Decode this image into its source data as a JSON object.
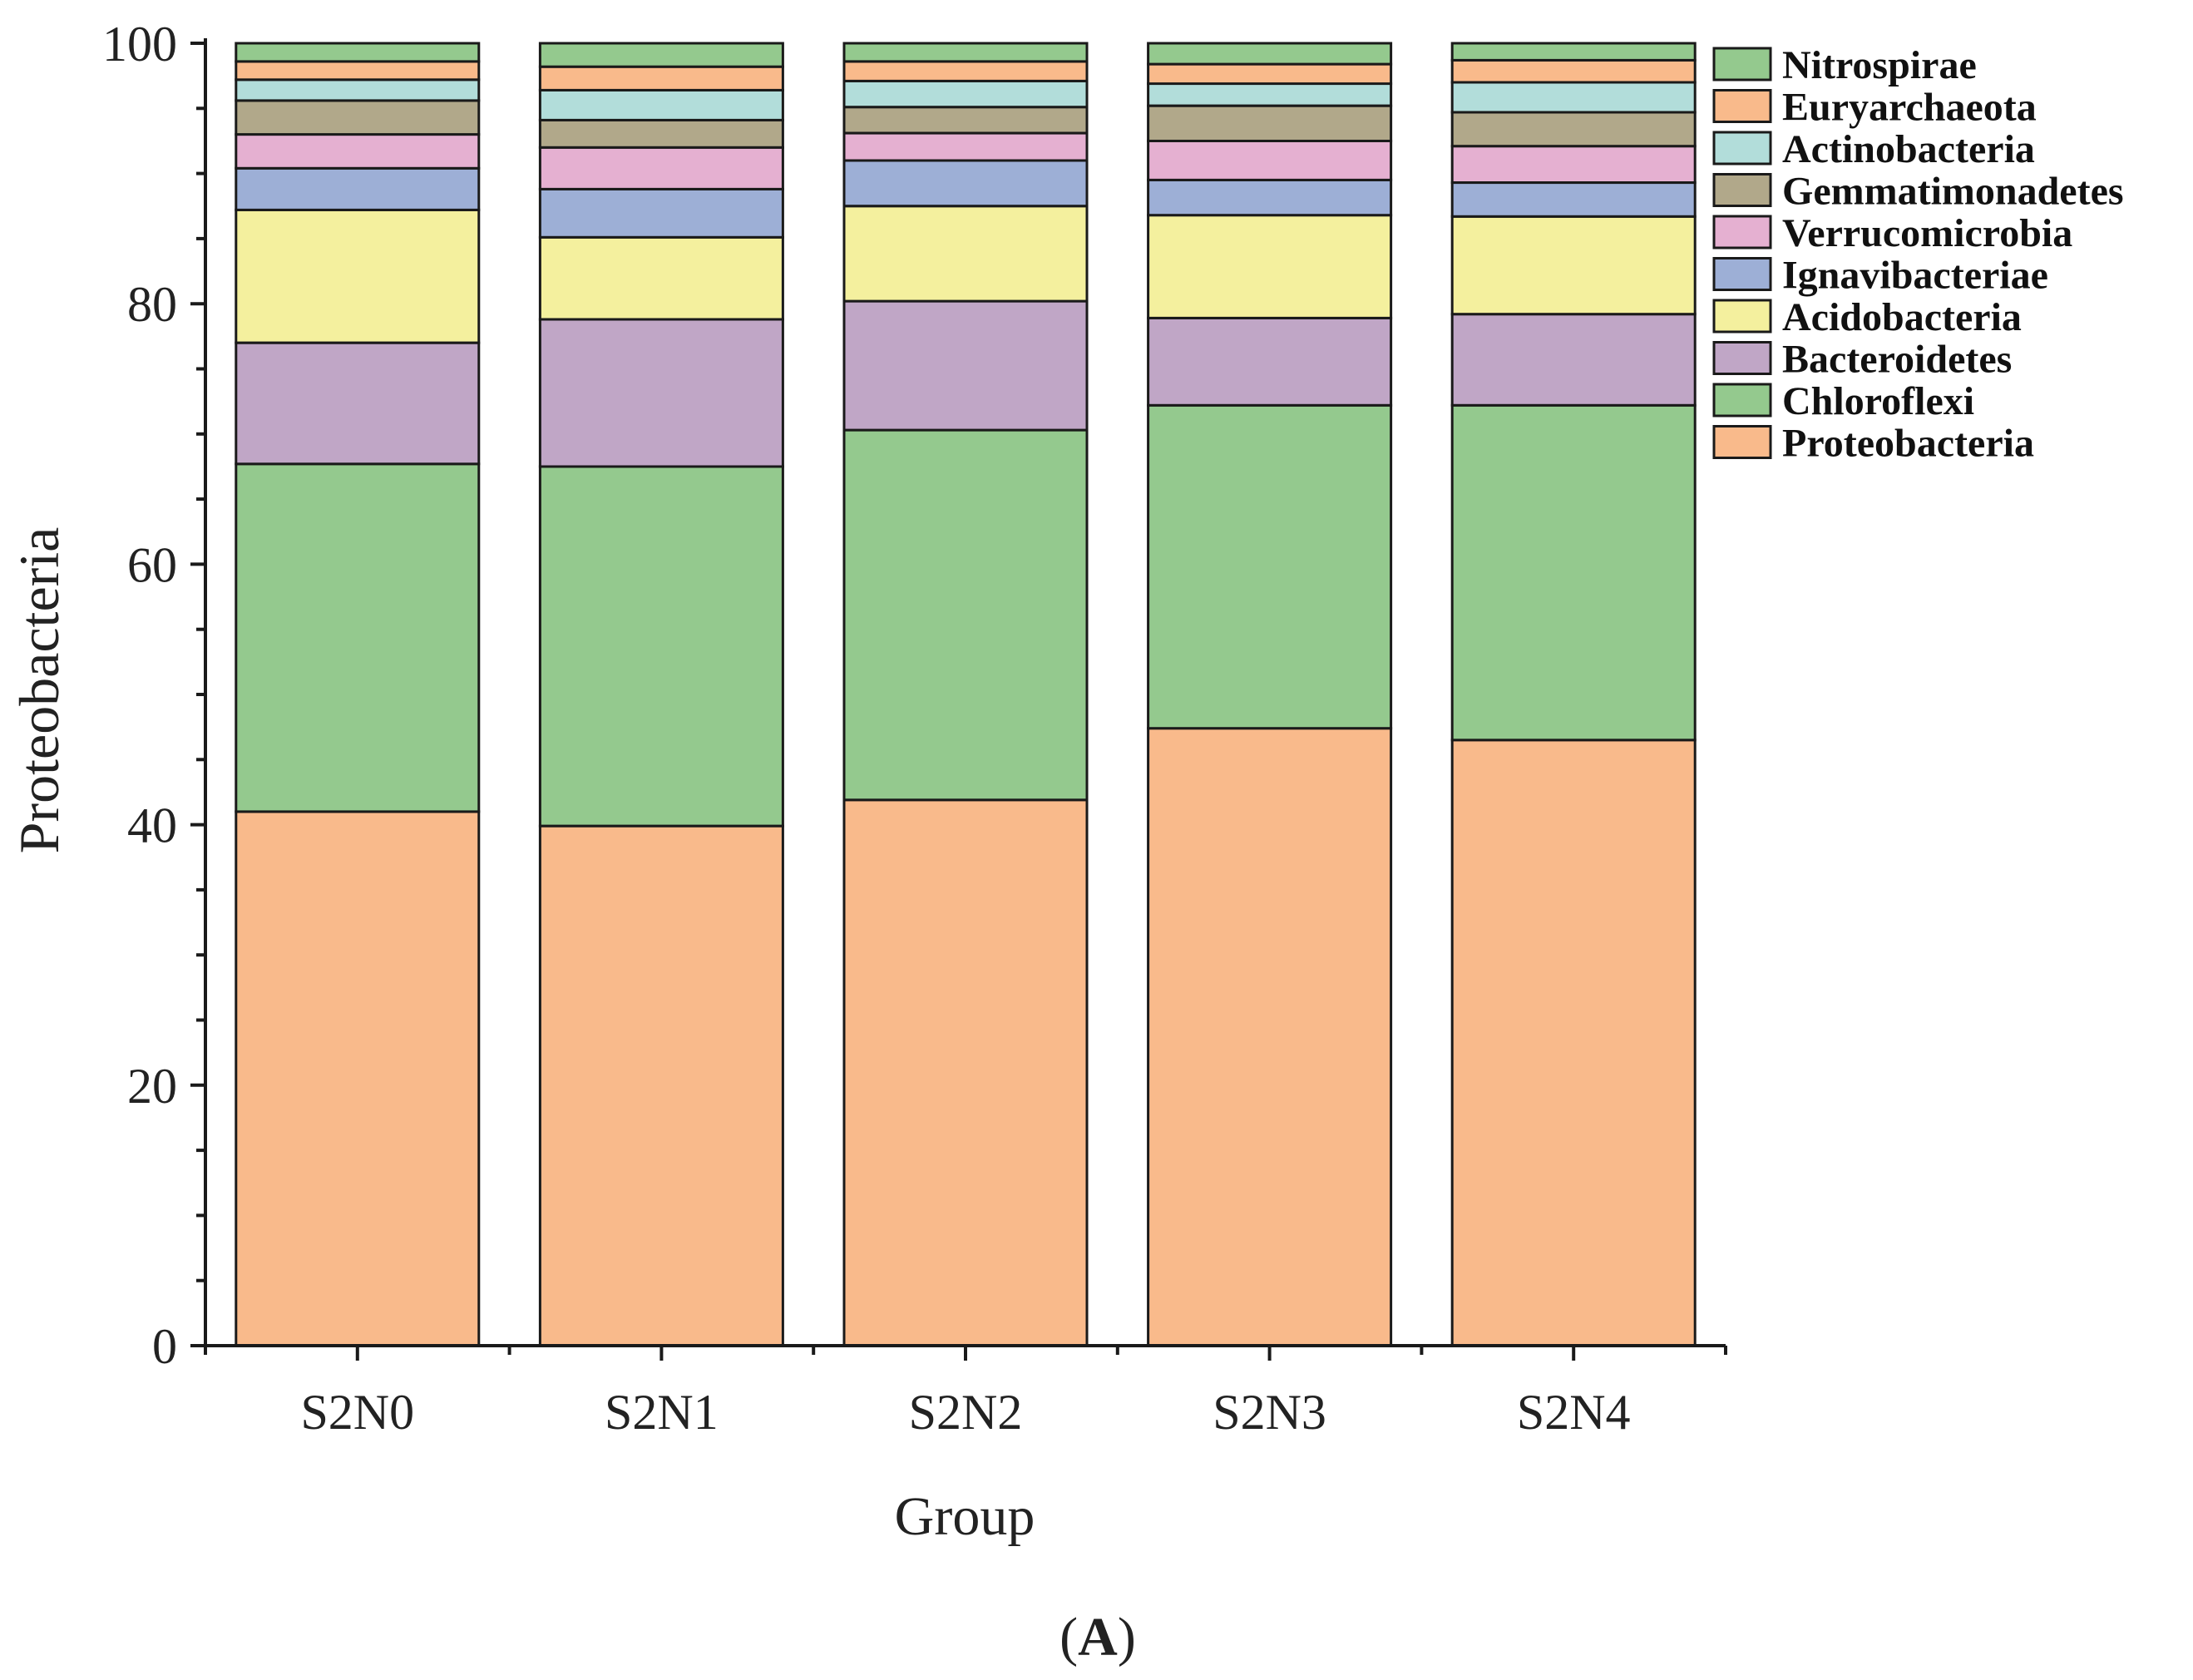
{
  "chart_data": {
    "type": "bar",
    "stacked": true,
    "title": "",
    "xlabel": "Group",
    "ylabel": "Proteobacteria",
    "ylim": [
      0,
      100
    ],
    "yticks": [
      "0",
      "20",
      "40",
      "60",
      "80",
      "100"
    ],
    "categories": [
      "S2N0",
      "S2N1",
      "S2N2",
      "S2N3",
      "S2N4"
    ],
    "series": [
      {
        "name": "Proteobacteria",
        "color": "#F9BA8B",
        "values": [
          41.0,
          39.9,
          41.9,
          47.4,
          46.5
        ]
      },
      {
        "name": "Chloroflexi",
        "color": "#94C98E",
        "values": [
          26.7,
          27.6,
          28.4,
          24.8,
          25.7
        ]
      },
      {
        "name": "Bacteroidetes",
        "color": "#C0A6C6",
        "values": [
          9.3,
          11.3,
          9.9,
          6.7,
          7.0
        ]
      },
      {
        "name": "Acidobacteria",
        "color": "#F4F09E",
        "values": [
          10.2,
          6.3,
          7.3,
          7.9,
          7.5
        ]
      },
      {
        "name": "Ignavibacteriae",
        "color": "#9DAFD6",
        "values": [
          3.2,
          3.7,
          3.5,
          2.7,
          2.6
        ]
      },
      {
        "name": "Verrucomicrobia",
        "color": "#E5B0D1",
        "values": [
          2.6,
          3.2,
          2.1,
          3.0,
          2.8
        ]
      },
      {
        "name": "Gemmatimonadetes",
        "color": "#B1A88A",
        "values": [
          2.6,
          2.1,
          2.0,
          2.7,
          2.6
        ]
      },
      {
        "name": "Actinobacteria",
        "color": "#B2DDDA",
        "values": [
          1.6,
          2.3,
          2.0,
          1.7,
          2.3
        ]
      },
      {
        "name": "Euryarchaeota",
        "color": "#F9BA8B",
        "values": [
          1.4,
          1.8,
          1.5,
          1.5,
          1.7
        ]
      },
      {
        "name": "Nitrospirae",
        "color": "#94C98E",
        "values": [
          1.4,
          1.8,
          1.4,
          1.6,
          1.3
        ]
      }
    ],
    "legend_position": "top-right",
    "legend_order": [
      "Nitrospirae",
      "Euryarchaeota",
      "Actinobacteria",
      "Gemmatimonadetes",
      "Verrucomicrobia",
      "Ignavibacteriae",
      "Acidobacteria",
      "Bacteroidetes",
      "Chloroflexi",
      "Proteobacteria"
    ]
  },
  "panel_label": {
    "open": "(",
    "letter": "A",
    "close": ")"
  }
}
